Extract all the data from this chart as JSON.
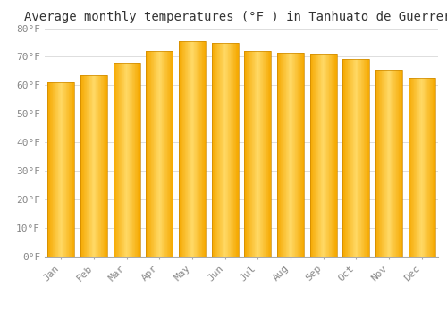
{
  "title": "Average monthly temperatures (°F ) in Tanhuato de Guerrero",
  "months": [
    "Jan",
    "Feb",
    "Mar",
    "Apr",
    "May",
    "Jun",
    "Jul",
    "Aug",
    "Sep",
    "Oct",
    "Nov",
    "Dec"
  ],
  "values": [
    61.2,
    63.7,
    67.5,
    72.0,
    75.5,
    74.8,
    72.0,
    71.5,
    71.0,
    69.2,
    65.5,
    62.5
  ],
  "bar_color_left": "#F5A800",
  "bar_color_center": "#FFD966",
  "bar_color_right": "#F5A800",
  "background_color": "#FFFFFF",
  "grid_color": "#DDDDDD",
  "ylim": [
    0,
    80
  ],
  "yticks": [
    0,
    10,
    20,
    30,
    40,
    50,
    60,
    70,
    80
  ],
  "ytick_labels": [
    "0°F",
    "10°F",
    "20°F",
    "30°F",
    "40°F",
    "50°F",
    "60°F",
    "70°F",
    "80°F"
  ],
  "title_fontsize": 10,
  "tick_fontsize": 8,
  "font_family": "monospace",
  "bar_width": 0.82
}
